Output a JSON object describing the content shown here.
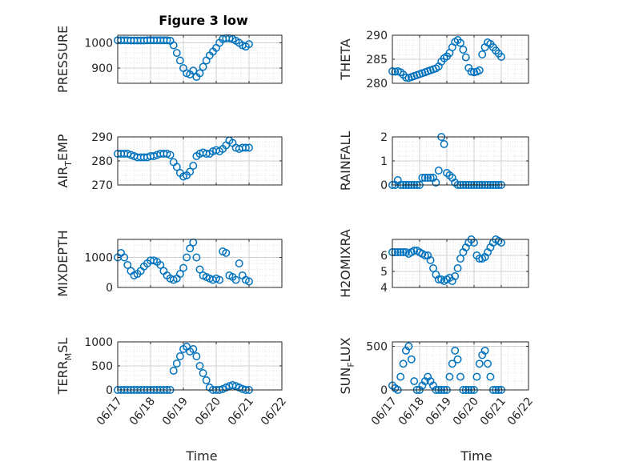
{
  "figure": {
    "title": "Figure 3 low",
    "xlabel": "Time"
  },
  "chart_data": [
    {
      "type": "scatter",
      "ylabel": "PRESSURE",
      "x_range": [
        "06/17",
        "06/22"
      ],
      "ylim": [
        840,
        1030
      ],
      "yticks": [
        900,
        1000
      ],
      "grid": true,
      "series": [
        {
          "marker": "circle",
          "color": "#0072BD",
          "x": [
            0.0,
            0.1,
            0.2,
            0.3,
            0.4,
            0.5,
            0.6,
            0.7,
            0.8,
            0.9,
            1.0,
            1.1,
            1.2,
            1.3,
            1.4,
            1.5,
            1.6,
            1.7,
            1.8,
            1.9,
            2.0,
            2.1,
            2.2,
            2.3,
            2.4,
            2.5,
            2.6,
            2.7,
            2.8,
            2.9,
            3.0,
            3.1,
            3.2,
            3.3,
            3.4,
            3.5,
            3.6,
            3.7,
            3.8,
            3.9,
            4.0
          ],
          "y": [
            1010,
            1010,
            1010,
            1010,
            1009,
            1009,
            1009,
            1009,
            1009,
            1010,
            1010,
            1010,
            1010,
            1010,
            1010,
            1010,
            1008,
            990,
            960,
            930,
            900,
            880,
            875,
            890,
            865,
            880,
            905,
            930,
            950,
            965,
            980,
            1000,
            1015,
            1018,
            1018,
            1015,
            1008,
            1000,
            990,
            985,
            995
          ]
        }
      ]
    },
    {
      "type": "scatter",
      "ylabel": "THETA",
      "x_range": [
        "06/17",
        "06/22"
      ],
      "ylim": [
        280,
        290
      ],
      "yticks": [
        280,
        285,
        290
      ],
      "grid": true,
      "series": [
        {
          "marker": "circle",
          "color": "#0072BD",
          "x": [
            0.0,
            0.1,
            0.2,
            0.3,
            0.4,
            0.5,
            0.6,
            0.7,
            0.8,
            0.9,
            1.0,
            1.1,
            1.2,
            1.3,
            1.4,
            1.5,
            1.6,
            1.7,
            1.8,
            1.9,
            2.0,
            2.1,
            2.2,
            2.3,
            2.4,
            2.5,
            2.6,
            2.7,
            2.8,
            2.9,
            3.0,
            3.1,
            3.2,
            3.3,
            3.4,
            3.5,
            3.6,
            3.7,
            3.8,
            3.9,
            4.0
          ],
          "y": [
            282.5,
            282.4,
            282.5,
            282.3,
            281.8,
            281.2,
            281.1,
            281.3,
            281.5,
            281.7,
            281.9,
            282.1,
            282.3,
            282.5,
            282.7,
            282.9,
            283.1,
            283.5,
            284.5,
            285.2,
            285.6,
            286.3,
            287.5,
            288.6,
            289.0,
            288.4,
            287.0,
            285.4,
            283.2,
            282.4,
            282.3,
            282.4,
            282.7,
            286.0,
            287.5,
            288.5,
            288.2,
            287.5,
            286.8,
            286.2,
            285.5
          ]
        }
      ]
    },
    {
      "type": "scatter",
      "ylabel": "AIR_TEMP",
      "x_range": [
        "06/17",
        "06/22"
      ],
      "ylim": [
        270,
        290
      ],
      "yticks": [
        270,
        280,
        290
      ],
      "grid": true,
      "series": [
        {
          "marker": "circle",
          "color": "#0072BD",
          "x": [
            0.0,
            0.1,
            0.2,
            0.3,
            0.4,
            0.5,
            0.6,
            0.7,
            0.8,
            0.9,
            1.0,
            1.1,
            1.2,
            1.3,
            1.4,
            1.5,
            1.6,
            1.7,
            1.8,
            1.9,
            2.0,
            2.1,
            2.2,
            2.3,
            2.4,
            2.5,
            2.6,
            2.7,
            2.8,
            2.9,
            3.0,
            3.1,
            3.2,
            3.3,
            3.4,
            3.5,
            3.6,
            3.7,
            3.8,
            3.9,
            4.0
          ],
          "y": [
            283,
            283,
            283,
            283,
            282.5,
            282,
            281.5,
            281.5,
            281.5,
            281.5,
            282,
            282,
            282.5,
            283,
            283,
            283,
            282.5,
            279.5,
            277.5,
            275,
            273.5,
            274,
            275.5,
            278,
            282,
            283,
            283.5,
            283,
            283,
            284,
            284.5,
            284,
            285,
            286.5,
            288.5,
            287.5,
            285.5,
            285,
            285.5,
            285.5,
            285.5
          ]
        }
      ]
    },
    {
      "type": "scatter",
      "ylabel": "RAINFALL",
      "x_range": [
        "06/17",
        "06/22"
      ],
      "ylim": [
        0,
        2
      ],
      "yticks": [
        0,
        1,
        2
      ],
      "grid": true,
      "series": [
        {
          "marker": "circle",
          "color": "#0072BD",
          "x": [
            0.0,
            0.1,
            0.2,
            0.3,
            0.4,
            0.5,
            0.6,
            0.7,
            0.8,
            0.9,
            1.0,
            1.1,
            1.2,
            1.3,
            1.4,
            1.5,
            1.6,
            1.7,
            1.8,
            1.9,
            2.0,
            2.1,
            2.2,
            2.3,
            2.4,
            2.5,
            2.6,
            2.7,
            2.8,
            2.9,
            3.0,
            3.1,
            3.2,
            3.3,
            3.4,
            3.5,
            3.6,
            3.7,
            3.8,
            3.9,
            4.0
          ],
          "y": [
            0,
            0,
            0.2,
            0,
            0,
            0,
            0,
            0,
            0,
            0,
            0,
            0.3,
            0.3,
            0.3,
            0.3,
            0.3,
            0.1,
            0.6,
            2.0,
            1.7,
            0.5,
            0.4,
            0.3,
            0.1,
            0,
            0,
            0,
            0,
            0,
            0,
            0,
            0,
            0,
            0,
            0,
            0,
            0,
            0,
            0,
            0,
            0
          ]
        }
      ]
    },
    {
      "type": "scatter",
      "ylabel": "MIXDEPTH",
      "x_range": [
        "06/17",
        "06/22"
      ],
      "ylim": [
        0,
        1600
      ],
      "yticks": [
        0,
        1000
      ],
      "grid": true,
      "series": [
        {
          "marker": "circle",
          "color": "#0072BD",
          "x": [
            0.0,
            0.1,
            0.2,
            0.3,
            0.4,
            0.5,
            0.6,
            0.7,
            0.8,
            0.9,
            1.0,
            1.1,
            1.2,
            1.3,
            1.4,
            1.5,
            1.6,
            1.7,
            1.8,
            1.9,
            2.0,
            2.1,
            2.2,
            2.3,
            2.4,
            2.5,
            2.6,
            2.7,
            2.8,
            2.9,
            3.0,
            3.1,
            3.2,
            3.3,
            3.4,
            3.5,
            3.6,
            3.7,
            3.8,
            3.9,
            4.0
          ],
          "y": [
            1000,
            1150,
            1000,
            750,
            550,
            400,
            450,
            550,
            700,
            800,
            900,
            900,
            850,
            750,
            550,
            400,
            300,
            250,
            300,
            450,
            650,
            1000,
            1300,
            1500,
            1000,
            600,
            400,
            350,
            300,
            250,
            300,
            250,
            1200,
            1150,
            400,
            350,
            250,
            800,
            400,
            250,
            200
          ]
        }
      ]
    },
    {
      "type": "scatter",
      "ylabel": "H2OMIXRA",
      "x_range": [
        "06/17",
        "06/22"
      ],
      "ylim": [
        4,
        7
      ],
      "yticks": [
        4,
        5,
        6
      ],
      "grid": true,
      "series": [
        {
          "marker": "circle",
          "color": "#0072BD",
          "x": [
            0.0,
            0.1,
            0.2,
            0.3,
            0.4,
            0.5,
            0.6,
            0.7,
            0.8,
            0.9,
            1.0,
            1.1,
            1.2,
            1.3,
            1.4,
            1.5,
            1.6,
            1.7,
            1.8,
            1.9,
            2.0,
            2.1,
            2.2,
            2.3,
            2.4,
            2.5,
            2.6,
            2.7,
            2.8,
            2.9,
            3.0,
            3.1,
            3.2,
            3.3,
            3.4,
            3.5,
            3.6,
            3.7,
            3.8,
            3.9,
            4.0
          ],
          "y": [
            6.2,
            6.2,
            6.2,
            6.2,
            6.2,
            6.2,
            6.1,
            6.2,
            6.3,
            6.3,
            6.2,
            6.1,
            6.0,
            6.0,
            5.7,
            5.2,
            4.8,
            4.5,
            4.5,
            4.4,
            4.5,
            4.6,
            4.4,
            4.7,
            5.2,
            5.8,
            6.2,
            6.5,
            6.8,
            7.0,
            6.8,
            6.0,
            5.8,
            5.8,
            5.9,
            6.2,
            6.5,
            6.8,
            7.0,
            6.9,
            6.8
          ]
        }
      ]
    },
    {
      "type": "scatter",
      "ylabel": "TERR_MSL",
      "x_range": [
        "06/17",
        "06/22"
      ],
      "ylim": [
        0,
        1000
      ],
      "yticks": [
        0,
        500,
        1000
      ],
      "grid": true,
      "series": [
        {
          "marker": "circle",
          "color": "#0072BD",
          "x": [
            0.0,
            0.1,
            0.2,
            0.3,
            0.4,
            0.5,
            0.6,
            0.7,
            0.8,
            0.9,
            1.0,
            1.1,
            1.2,
            1.3,
            1.4,
            1.5,
            1.6,
            1.7,
            1.8,
            1.9,
            2.0,
            2.1,
            2.2,
            2.3,
            2.4,
            2.5,
            2.6,
            2.7,
            2.8,
            2.9,
            3.0,
            3.1,
            3.2,
            3.3,
            3.4,
            3.5,
            3.6,
            3.7,
            3.8,
            3.9,
            4.0
          ],
          "y": [
            0,
            0,
            0,
            0,
            0,
            0,
            0,
            0,
            0,
            0,
            0,
            0,
            0,
            0,
            0,
            0,
            0,
            400,
            550,
            700,
            850,
            900,
            800,
            850,
            700,
            500,
            350,
            200,
            50,
            0,
            0,
            0,
            20,
            50,
            80,
            100,
            80,
            50,
            20,
            0,
            0
          ]
        }
      ]
    },
    {
      "type": "scatter",
      "ylabel": "SUN_FLUX",
      "x_range": [
        "06/17",
        "06/22"
      ],
      "ylim": [
        0,
        550
      ],
      "yticks": [
        0,
        500
      ],
      "grid": true,
      "series": [
        {
          "marker": "circle",
          "color": "#0072BD",
          "x": [
            0.0,
            0.1,
            0.2,
            0.3,
            0.4,
            0.5,
            0.6,
            0.7,
            0.8,
            0.9,
            1.0,
            1.1,
            1.2,
            1.3,
            1.4,
            1.5,
            1.6,
            1.7,
            1.8,
            1.9,
            2.0,
            2.1,
            2.2,
            2.3,
            2.4,
            2.5,
            2.6,
            2.7,
            2.8,
            2.9,
            3.0,
            3.1,
            3.2,
            3.3,
            3.4,
            3.5,
            3.6,
            3.7,
            3.8,
            3.9,
            4.0
          ],
          "y": [
            50,
            20,
            0,
            150,
            300,
            450,
            500,
            350,
            100,
            0,
            0,
            50,
            100,
            150,
            100,
            50,
            0,
            0,
            0,
            0,
            0,
            150,
            300,
            450,
            350,
            150,
            0,
            0,
            0,
            0,
            0,
            150,
            300,
            400,
            450,
            300,
            150,
            0,
            0,
            0,
            0
          ]
        }
      ]
    }
  ]
}
